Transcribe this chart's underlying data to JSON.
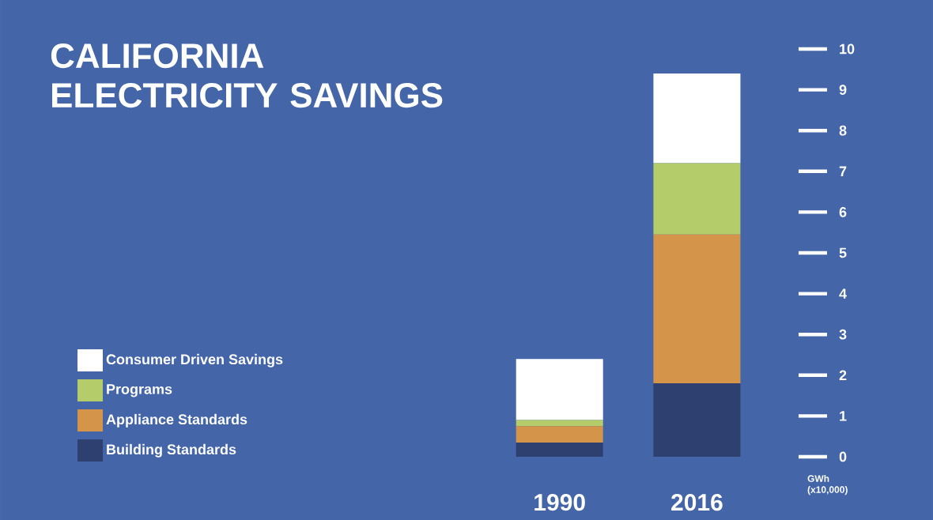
{
  "chart_data": {
    "type": "bar",
    "title": "CALIFORNIA ELECTRICITY SAVINGS",
    "ylabel": "GWh (x10,000)",
    "stacked": true,
    "legend": "left",
    "categories": [
      "1990",
      "2016"
    ],
    "series": [
      {
        "name": "Building Standards",
        "color": "#2e4070",
        "values": [
          0.35,
          1.8
        ]
      },
      {
        "name": "Appliance Standards",
        "color": "#d4954a",
        "values": [
          0.4,
          3.65
        ]
      },
      {
        "name": "Programs",
        "color": "#b5cc6a",
        "values": [
          0.15,
          1.75
        ]
      },
      {
        "name": "Consumer Driven Savings",
        "color": "#ffffff",
        "values": [
          1.5,
          2.2
        ]
      }
    ],
    "ylim": [
      0,
      10
    ],
    "yticks": [
      0,
      1,
      2,
      3,
      4,
      5,
      6,
      7,
      8,
      9,
      10
    ]
  }
}
